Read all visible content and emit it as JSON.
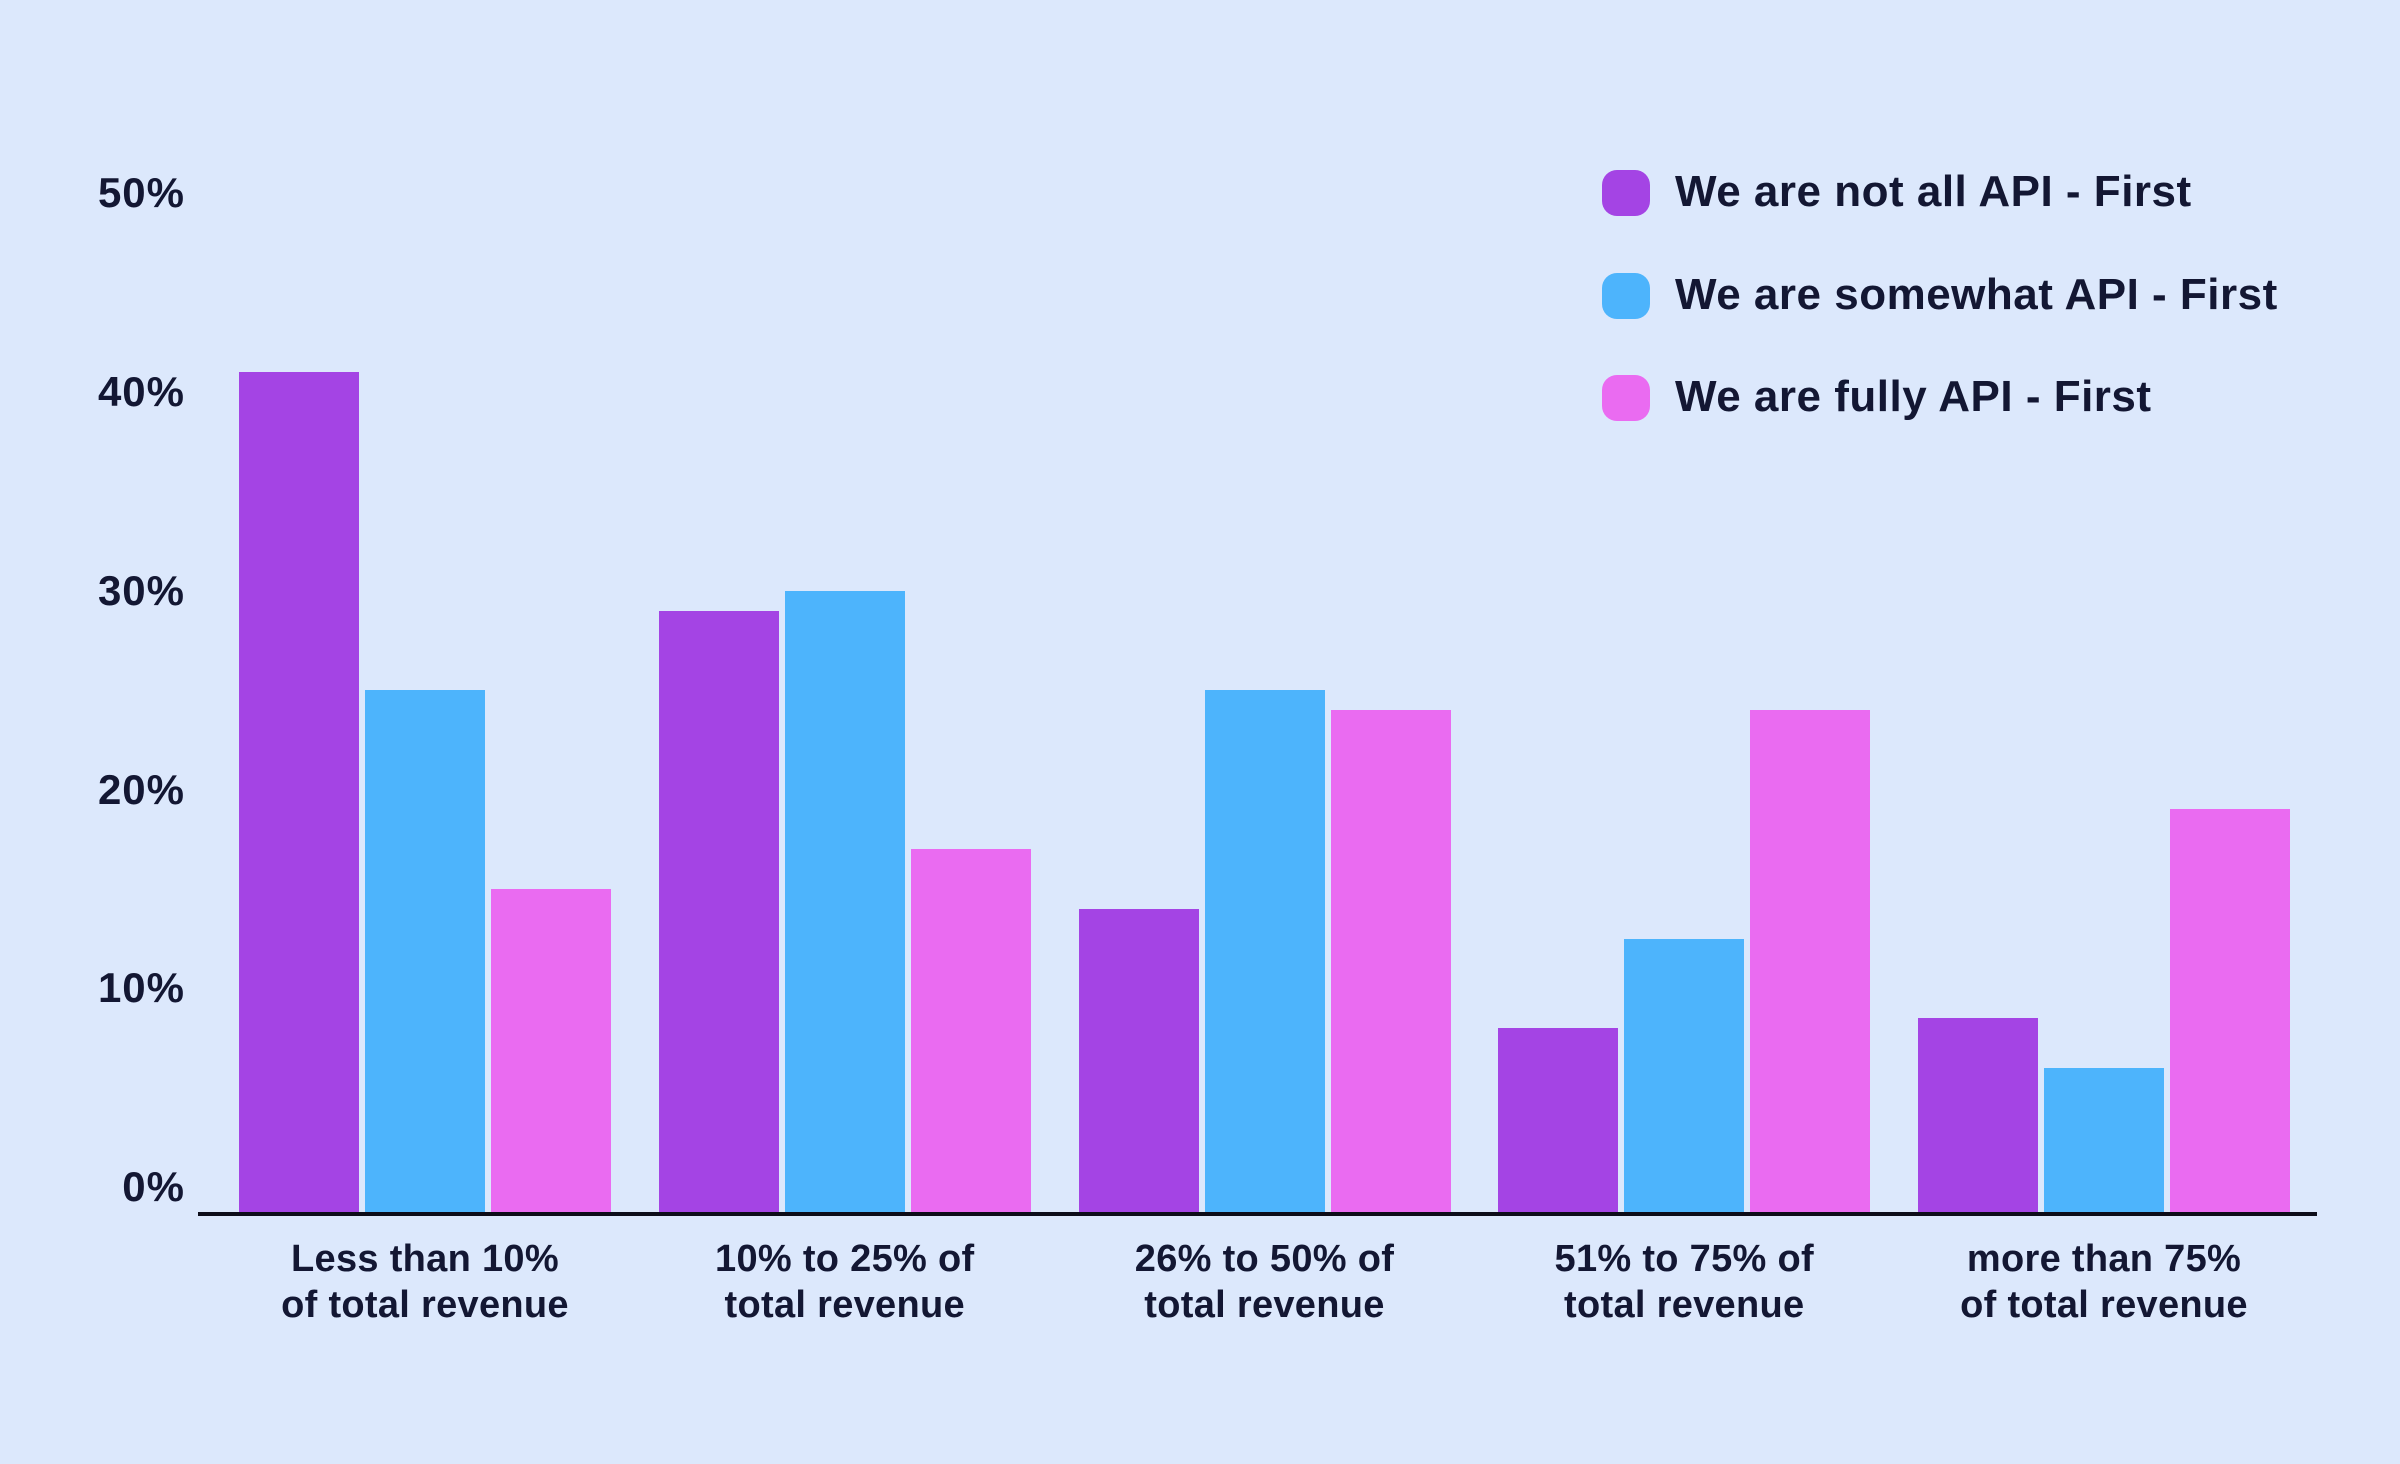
{
  "colors": {
    "background": "#dce8fc",
    "text": "#131733",
    "axis_line": "#0d0d1a"
  },
  "chart_data": {
    "type": "bar",
    "title": "",
    "xlabel": "",
    "ylabel": "",
    "grid": false,
    "legend_position": "top-right",
    "ylim": [
      0,
      50
    ],
    "yticks": [
      {
        "label": "50%",
        "value": 50
      },
      {
        "label": "40%",
        "value": 40
      },
      {
        "label": "30%",
        "value": 30
      },
      {
        "label": "20%",
        "value": 20
      },
      {
        "label": "10%",
        "value": 10
      },
      {
        "label": "0%",
        "value": 0
      }
    ],
    "categories": [
      "Less than 10%\nof total revenue",
      "10% to 25% of\ntotal revenue",
      "26% to 50% of\ntotal revenue",
      "51% to 75% of\ntotal revenue",
      "more than 75%\nof total revenue"
    ],
    "series": [
      {
        "name": "We are not all API - First",
        "color": "#a444e4",
        "values": [
          41,
          29,
          14,
          8,
          8.5
        ]
      },
      {
        "name": "We are somewhat API - First",
        "color": "#4db4fc",
        "values": [
          25,
          30,
          25,
          12.5,
          6
        ]
      },
      {
        "name": "We are fully API - First",
        "color": "#ea6bf1",
        "values": [
          15,
          17,
          24,
          24,
          19
        ]
      }
    ]
  }
}
